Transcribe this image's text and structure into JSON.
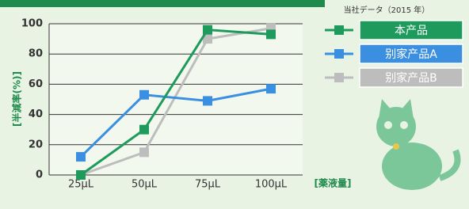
{
  "chart_data": {
    "type": "line",
    "y_label": "[半減率(%)]",
    "x_label": "[薬液量]",
    "legend_title": "当社データ（2015 年）",
    "categories": [
      "25μL",
      "50μL",
      "75μL",
      "100μL"
    ],
    "series": [
      {
        "name": "本产品",
        "color": "#1e9a5c",
        "values": [
          0,
          30,
          96,
          93
        ]
      },
      {
        "name": "别家产品A",
        "color": "#3b8fe0",
        "values": [
          12,
          53,
          49,
          57
        ]
      },
      {
        "name": "别家产品B",
        "color": "#bdbdbd",
        "values": [
          0,
          15,
          90,
          97
        ]
      }
    ],
    "ylim": [
      0,
      100
    ],
    "yticks": [
      0,
      20,
      40,
      60,
      80,
      100
    ],
    "grid": true
  }
}
